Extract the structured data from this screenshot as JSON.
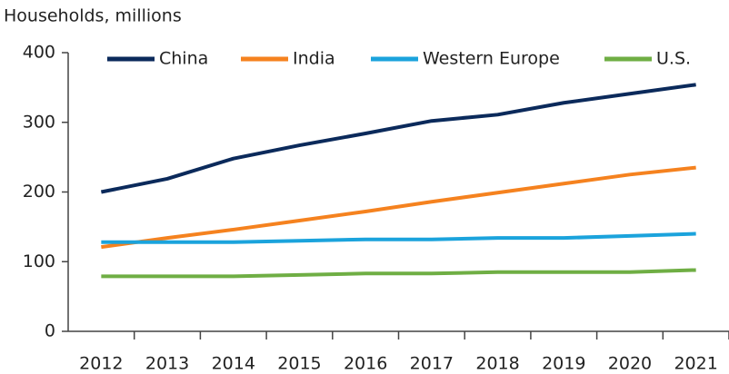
{
  "chart_data": {
    "type": "line",
    "ylabel": "Households, millions",
    "categories": [
      "2012",
      "2013",
      "2014",
      "2015",
      "2016",
      "2017",
      "2018",
      "2019",
      "2020",
      "2021"
    ],
    "series": [
      {
        "name": "China",
        "color": "#0b2a5b",
        "values": [
          200,
          219,
          248,
          267,
          284,
          302,
          311,
          328,
          341,
          354
        ]
      },
      {
        "name": "India",
        "color": "#f5821f",
        "values": [
          121,
          134,
          146,
          159,
          172,
          186,
          199,
          212,
          225,
          235
        ]
      },
      {
        "name": "Western Europe",
        "color": "#1ba3dc",
        "values": [
          128,
          128,
          128,
          130,
          132,
          132,
          134,
          134,
          137,
          140
        ]
      },
      {
        "name": "U.S.",
        "color": "#6fae44",
        "values": [
          79,
          79,
          79,
          81,
          83,
          83,
          85,
          85,
          85,
          88
        ]
      }
    ],
    "ylim": [
      0,
      400
    ],
    "yticks": [
      0,
      100,
      200,
      300,
      400
    ],
    "grid": false,
    "legend": "top"
  }
}
